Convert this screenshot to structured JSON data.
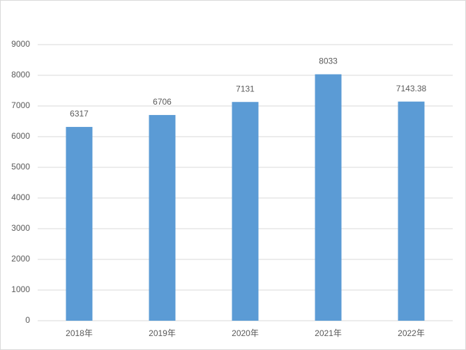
{
  "chart_data": {
    "type": "bar",
    "categories": [
      "2018年",
      "2019年",
      "2020年",
      "2021年",
      "2022年"
    ],
    "values": [
      6317,
      6706,
      7131,
      8033,
      7143.38
    ],
    "color": "#5b9bd5",
    "ylim": [
      0,
      9000
    ],
    "yticks": [
      0,
      1000,
      2000,
      3000,
      4000,
      5000,
      6000,
      7000,
      8000,
      9000
    ],
    "grid": true
  }
}
